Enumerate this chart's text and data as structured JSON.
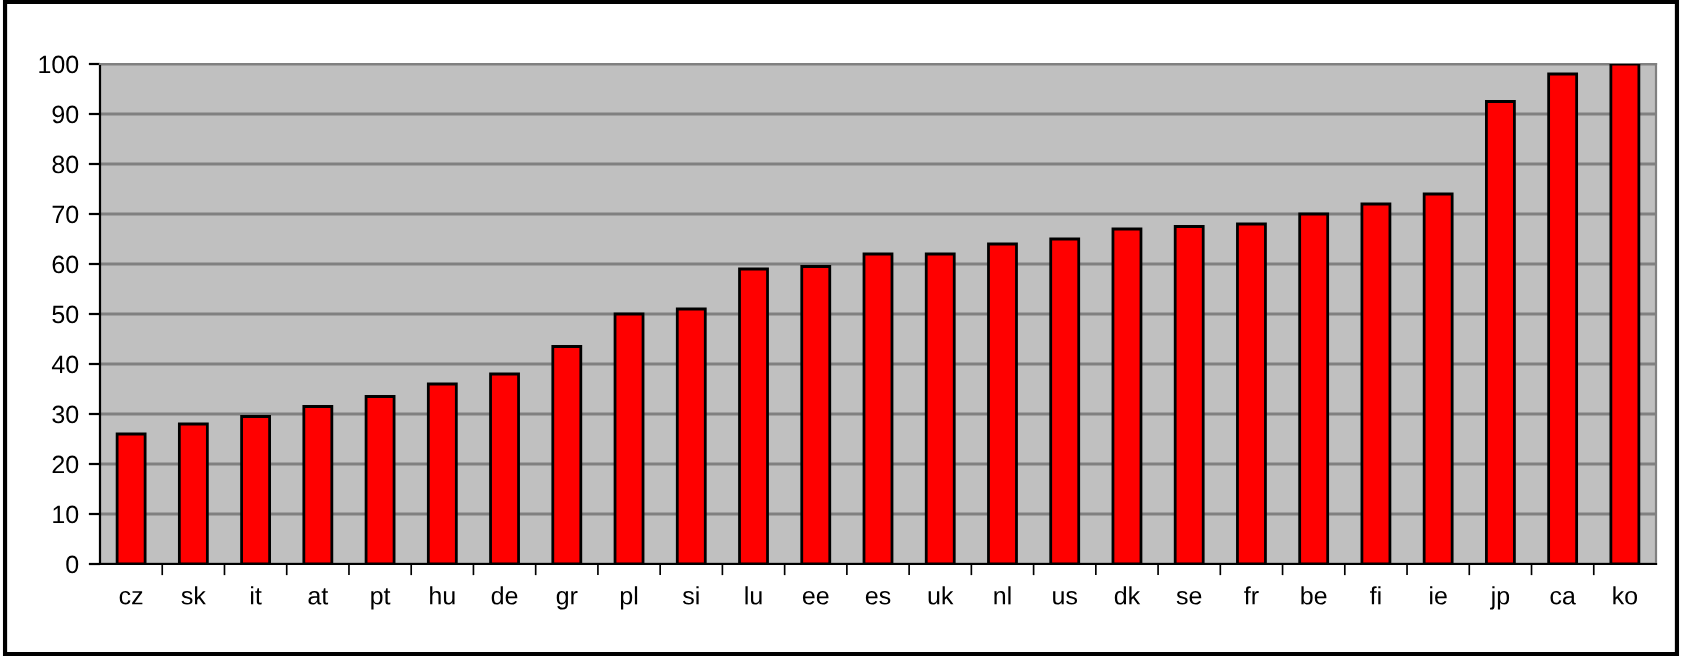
{
  "chart_data": {
    "type": "bar",
    "categories": [
      "cz",
      "sk",
      "it",
      "at",
      "pt",
      "hu",
      "de",
      "gr",
      "pl",
      "si",
      "lu",
      "ee",
      "es",
      "uk",
      "nl",
      "us",
      "dk",
      "se",
      "fr",
      "be",
      "fi",
      "ie",
      "jp",
      "ca",
      "ko"
    ],
    "values": [
      26,
      28,
      29.5,
      31.5,
      33.5,
      36,
      38,
      43.5,
      50,
      51,
      59,
      59.5,
      62,
      62,
      64,
      65,
      67,
      67.5,
      68,
      70,
      72,
      74,
      92.5,
      98,
      100
    ],
    "color": "#ff0000",
    "ylim": [
      0,
      100
    ],
    "yticks": [
      0,
      10,
      20,
      30,
      40,
      50,
      60,
      70,
      80,
      90,
      100
    ],
    "grid": "y"
  }
}
